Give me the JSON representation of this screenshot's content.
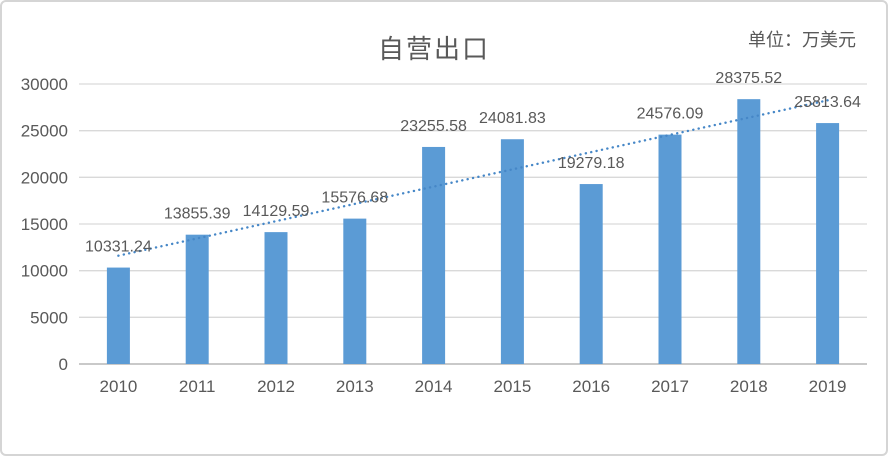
{
  "chart_data": {
    "type": "bar",
    "title": "自营出口",
    "unit_label": "单位：万美元",
    "categories": [
      "2010",
      "2011",
      "2012",
      "2013",
      "2014",
      "2015",
      "2016",
      "2017",
      "2018",
      "2019"
    ],
    "series": [
      {
        "name": "自营出口",
        "values": [
          10331.24,
          13855.39,
          14129.59,
          15576.68,
          23255.58,
          24081.83,
          19279.18,
          24576.09,
          28375.52,
          25813.64
        ],
        "data_labels": [
          "10331.24",
          "13855.39",
          "14129.59",
          "15576.68",
          "23255.58",
          "24081.83",
          "19279.18",
          "24576.09",
          "28375.52",
          "25813.64"
        ]
      }
    ],
    "xlabel": "",
    "ylabel": "",
    "ylim": [
      0,
      30000
    ],
    "ytick_step": 5000,
    "ytick_labels": [
      "0",
      "5000",
      "10000",
      "15000",
      "20000",
      "25000",
      "30000"
    ],
    "grid": true,
    "legend": "none",
    "trendline": {
      "type": "linear",
      "style": "dotted"
    },
    "colors": {
      "bar": "#5B9BD5",
      "trendline": "#4687C7",
      "gridline": "#D9D9D9",
      "axis_line": "#C9C9C9",
      "text": "#595959",
      "data_label_text": "#595959",
      "background": "#FFFFFF",
      "border": "#D5D5D5"
    }
  }
}
